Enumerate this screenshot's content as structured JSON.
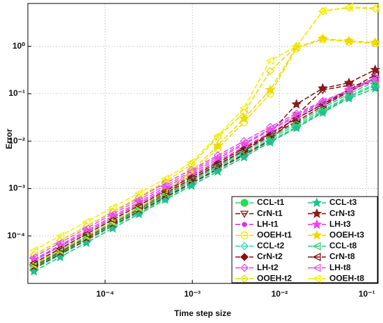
{
  "chart_data": {
    "type": "line",
    "xlabel": "Time step size",
    "ylabel": "Error",
    "x": [
      1.526e-05,
      3.052e-05,
      6.104e-05,
      0.0001221,
      0.0002441,
      0.0004883,
      0.0009766,
      0.001953,
      0.003906,
      0.0078125,
      0.015625,
      0.03125,
      0.0625,
      0.125
    ],
    "xlog": true,
    "ylog": true,
    "grid": true,
    "legend": "lower right",
    "xlim": [
      1.3e-05,
      0.135
    ],
    "ylim": [
      1e-05,
      8
    ],
    "xticks": [
      {
        "value": 0.0001,
        "label": "10⁻⁴"
      },
      {
        "value": 0.001,
        "label": "10⁻³"
      },
      {
        "value": 0.01,
        "label": "10⁻²"
      },
      {
        "value": 0.1,
        "label": "10⁻¹"
      }
    ],
    "yticks": [
      {
        "value": 0.0001,
        "label": "10⁻⁴"
      },
      {
        "value": 0.001,
        "label": "10⁻³"
      },
      {
        "value": 0.01,
        "label": "10⁻²"
      },
      {
        "value": 0.1,
        "label": "10⁻¹"
      },
      {
        "value": 1,
        "label": "10⁰"
      }
    ],
    "series": [
      {
        "name": "CCL-t1",
        "color": "#22dd55",
        "marker": "circle-filled",
        "values": [
          2e-05,
          4e-05,
          8e-05,
          0.00016,
          0.00031,
          0.00062,
          0.00125,
          0.0025,
          0.005,
          0.01,
          0.02,
          0.042,
          0.085,
          0.15
        ]
      },
      {
        "name": "CrN-t1",
        "color": "#8b1a1a",
        "marker": "triangle-down",
        "values": [
          2.1e-05,
          4.2e-05,
          8.4e-05,
          0.00017,
          0.00033,
          0.00066,
          0.0013,
          0.0026,
          0.0052,
          0.0105,
          0.035,
          0.12,
          0.15,
          0.17
        ]
      },
      {
        "name": "LH-t1",
        "color": "#e030e0",
        "marker": "dot",
        "values": [
          3e-05,
          6e-05,
          0.00012,
          0.00024,
          0.00048,
          0.00095,
          0.0019,
          0.0038,
          0.0075,
          0.015,
          0.03,
          0.06,
          0.11,
          0.2
        ]
      },
      {
        "name": "OOEH-t1",
        "color": "#f2e200",
        "marker": "circle",
        "values": [
          2.2e-05,
          4.5e-05,
          9e-05,
          0.00018,
          0.00036,
          0.00075,
          0.002,
          0.007,
          0.025,
          0.1,
          0.9,
          1.4,
          1.25,
          1.15
        ]
      },
      {
        "name": "CCL-t2",
        "color": "#30d8b8",
        "marker": "diamond",
        "values": [
          2.2e-05,
          4.4e-05,
          8.8e-05,
          0.000175,
          0.00035,
          0.0007,
          0.0014,
          0.0028,
          0.0055,
          0.011,
          0.022,
          0.045,
          0.09,
          0.16
        ]
      },
      {
        "name": "CrN-t2",
        "color": "#8b1010",
        "marker": "diamond-filled",
        "values": [
          2.5e-05,
          5e-05,
          0.0001,
          0.0002,
          0.0004,
          0.0008,
          0.0016,
          0.0032,
          0.0064,
          0.013,
          0.026,
          0.055,
          0.11,
          0.22
        ]
      },
      {
        "name": "LH-t2",
        "color": "#e050e8",
        "marker": "diamond",
        "values": [
          4e-05,
          8e-05,
          0.00016,
          0.00032,
          0.00064,
          0.0013,
          0.0025,
          0.005,
          0.01,
          0.02,
          0.038,
          0.07,
          0.12,
          0.22
        ]
      },
      {
        "name": "OOEH-t2",
        "color": "#e8e000",
        "marker": "diamond",
        "values": [
          4e-05,
          8e-05,
          0.00016,
          0.00033,
          0.00066,
          0.0014,
          0.0032,
          0.012,
          0.04,
          0.3,
          1.0,
          5.5,
          6.5,
          6.2
        ]
      },
      {
        "name": "CCL-t3",
        "color": "#20c090",
        "marker": "star",
        "values": [
          1.8e-05,
          3.6e-05,
          7.2e-05,
          0.000145,
          0.00029,
          0.00058,
          0.00115,
          0.0023,
          0.0046,
          0.0095,
          0.019,
          0.04,
          0.08,
          0.13
        ]
      },
      {
        "name": "CrN-t3",
        "color": "#8b1a1a",
        "marker": "star",
        "values": [
          2.3e-05,
          4.6e-05,
          9.2e-05,
          0.000185,
          0.00037,
          0.00074,
          0.0015,
          0.003,
          0.006,
          0.015,
          0.06,
          0.13,
          0.17,
          0.32
        ]
      },
      {
        "name": "LH-t3",
        "color": "#f040f0",
        "marker": "star",
        "values": [
          3.2e-05,
          6.4e-05,
          0.00013,
          0.00026,
          0.00052,
          0.00105,
          0.0021,
          0.0042,
          0.0085,
          0.017,
          0.033,
          0.065,
          0.12,
          0.21
        ]
      },
      {
        "name": "OOEH-t3",
        "color": "#f0d800",
        "marker": "star",
        "values": [
          2.5e-05,
          5e-05,
          0.0001,
          0.0002,
          0.0004,
          0.00085,
          0.0023,
          0.008,
          0.03,
          0.12,
          0.95,
          1.45,
          1.3,
          1.2
        ]
      },
      {
        "name": "CCL-t8",
        "color": "#30d070",
        "marker": "triangle-left",
        "values": [
          2.4e-05,
          4.8e-05,
          9.6e-05,
          0.00019,
          0.00038,
          0.00076,
          0.0015,
          0.003,
          0.006,
          0.012,
          0.024,
          0.05,
          0.1,
          0.18
        ]
      },
      {
        "name": "CrN-t8",
        "color": "#7a1010",
        "marker": "triangle-left",
        "values": [
          2.7e-05,
          5.4e-05,
          0.00011,
          0.00022,
          0.00044,
          0.00088,
          0.00175,
          0.0035,
          0.007,
          0.014,
          0.03,
          0.06,
          0.12,
          0.25
        ]
      },
      {
        "name": "LH-t8",
        "color": "#e060f0",
        "marker": "triangle-left",
        "values": [
          3.6e-05,
          7.2e-05,
          0.000145,
          0.00029,
          0.00058,
          0.00115,
          0.0023,
          0.0046,
          0.009,
          0.018,
          0.035,
          0.068,
          0.12,
          0.2
        ]
      },
      {
        "name": "OOEH-t8",
        "color": "#f5f000",
        "marker": "triangle-left",
        "values": [
          5e-05,
          0.0001,
          0.0002,
          0.0004,
          0.0008,
          0.0016,
          0.0036,
          0.013,
          0.05,
          0.5,
          1.0,
          5.6,
          6.7,
          6.5
        ]
      }
    ]
  }
}
